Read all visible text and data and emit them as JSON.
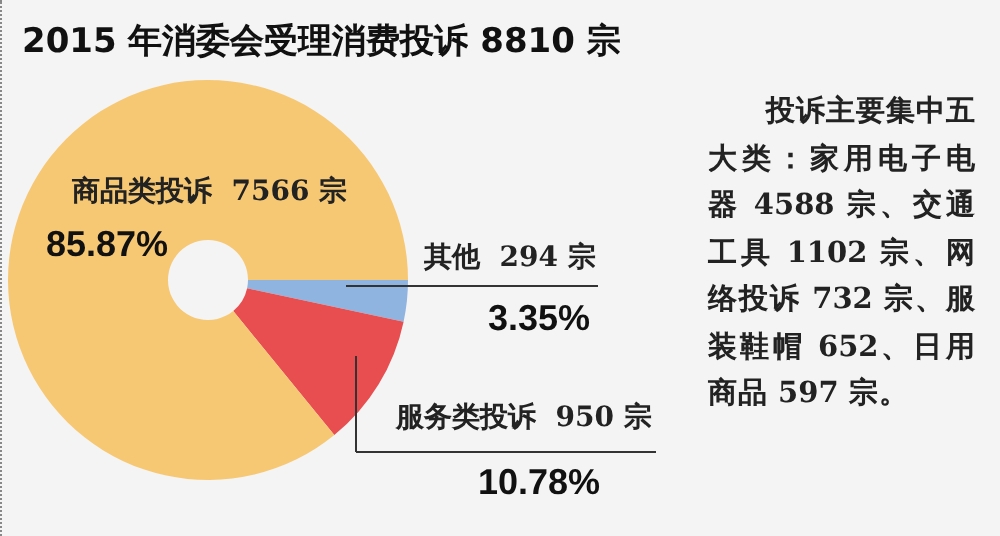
{
  "chart_data": {
    "type": "donut",
    "title": "2015 年消委会受理消费投诉 8810 宗",
    "categories": [
      "其他",
      "服务类投诉",
      "商品类投诉"
    ],
    "values": [
      294,
      950,
      7566
    ],
    "colors": [
      "#8fb4e0",
      "#e84e4f",
      "#f7c873"
    ],
    "value_labels": [
      "294 宗",
      "950 宗",
      "7566 宗"
    ],
    "annotations": [
      "3.35%",
      "10.78%",
      "85.87%",
      "投诉主要集中五大类：家用电子电器 4588 宗、交通工具 1102 宗、网络投诉 732 宗、服装鞋帽 652、日用商品 597 宗。"
    ]
  }
}
